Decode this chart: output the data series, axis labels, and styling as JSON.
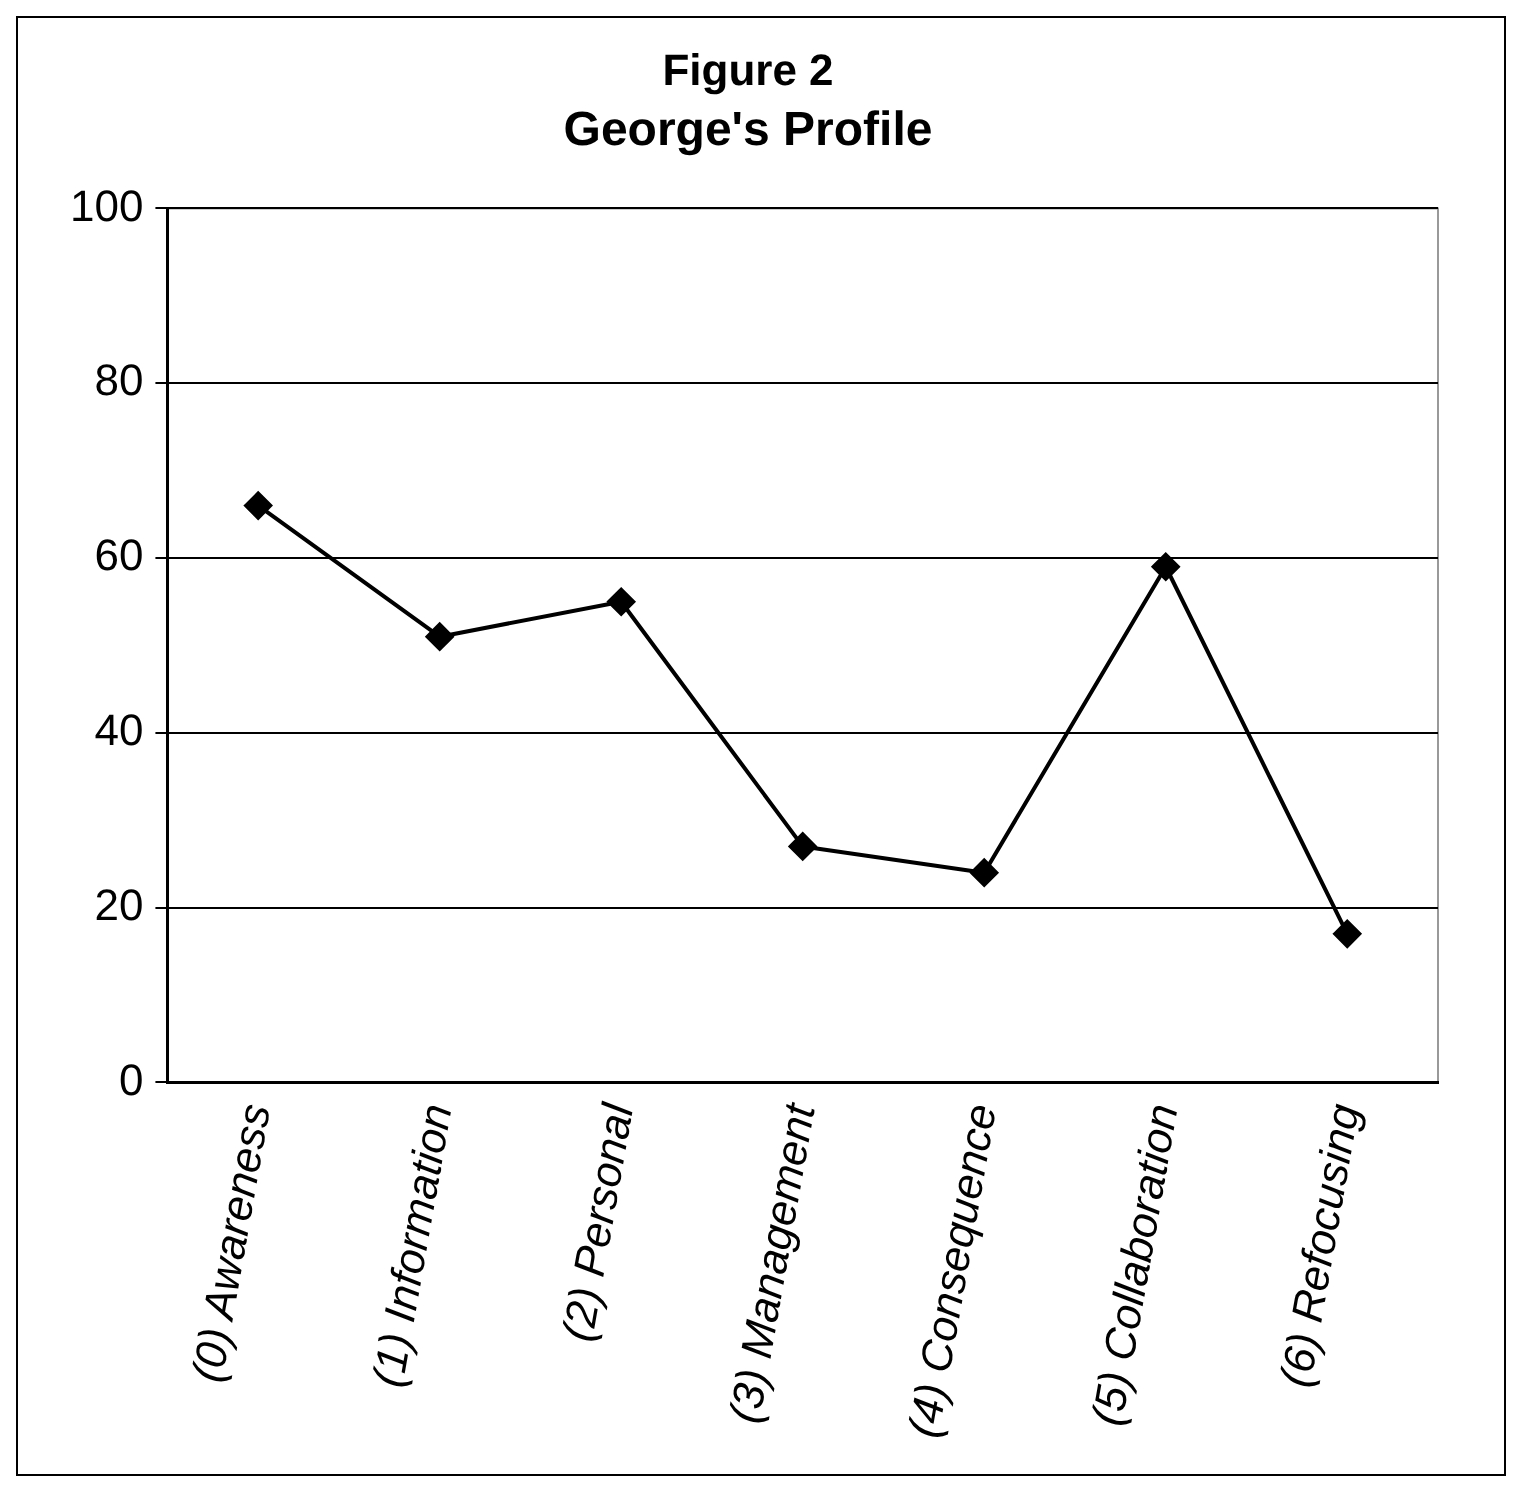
{
  "chart_data": {
    "type": "line",
    "title": "Figure 2",
    "subtitle": "George's Profile",
    "categories": [
      "(0) Awareness",
      "(1) Information",
      "(2) Personal",
      "(3) Management",
      "(4) Consequence",
      "(5) Collaboration",
      "(6) Refocusing"
    ],
    "series": [
      {
        "color": "#000000",
        "values": [
          66,
          51,
          55,
          27,
          24,
          59,
          17
        ]
      }
    ],
    "ylim": [
      0,
      100
    ],
    "yticks": [
      0,
      20,
      40,
      60,
      80,
      100
    ],
    "grid": "y",
    "legend": false,
    "marker": "diamond",
    "line_style": "solid"
  }
}
